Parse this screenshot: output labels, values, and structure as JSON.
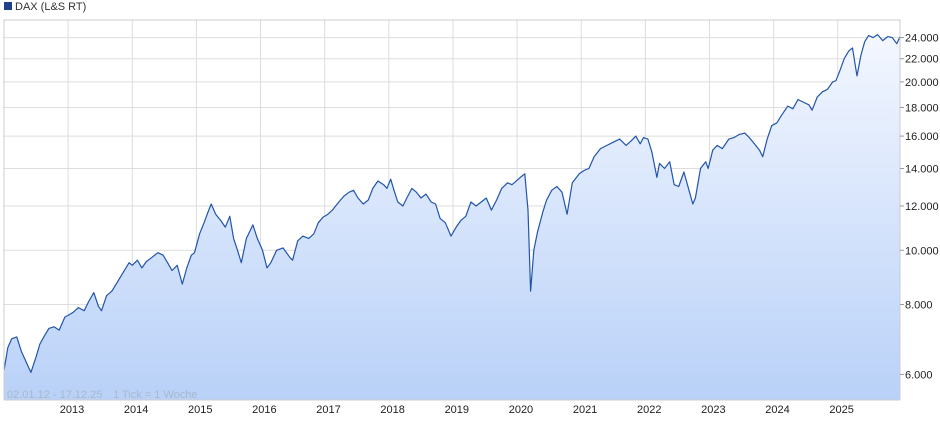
{
  "chart_data": {
    "type": "area",
    "legend": {
      "label": "DAX (L&S RT)",
      "placement": "top-left"
    },
    "footer": {
      "range": "02.01.12 - 17.12.25",
      "tick_note": "1 Tick = 1 Woche"
    },
    "watermark": "",
    "x_ticks": [
      "2013",
      "2014",
      "2015",
      "2016",
      "2017",
      "2018",
      "2019",
      "2020",
      "2021",
      "2022",
      "2023",
      "2024",
      "2025"
    ],
    "y_ticks": [
      {
        "value": 6000,
        "label": "6.000"
      },
      {
        "value": 8000,
        "label": "8.000"
      },
      {
        "value": 10000,
        "label": "10.000"
      },
      {
        "value": 12000,
        "label": "12.000"
      },
      {
        "value": 14000,
        "label": "14.000"
      },
      {
        "value": 16000,
        "label": "16.000"
      },
      {
        "value": 18000,
        "label": "18.000"
      },
      {
        "value": 20000,
        "label": "20.000"
      },
      {
        "value": 22000,
        "label": "22.000"
      },
      {
        "value": 24000,
        "label": "24.000"
      }
    ],
    "y_scale": "log",
    "ylim": [
      5400,
      25800
    ],
    "xlim": [
      2012.0,
      2025.97
    ],
    "grid": true,
    "colors": {
      "line": "#2255aa",
      "fill_top": "#f3f7ff",
      "fill_bottom": "#b9d1f8",
      "grid": "#dddddd",
      "legend_box": "#1f3f8f"
    },
    "series": [
      {
        "name": "DAX (L&S RT)",
        "points": [
          [
            2012.0,
            6100
          ],
          [
            2012.06,
            6700
          ],
          [
            2012.12,
            6950
          ],
          [
            2012.2,
            7000
          ],
          [
            2012.27,
            6600
          ],
          [
            2012.35,
            6300
          ],
          [
            2012.42,
            6050
          ],
          [
            2012.5,
            6450
          ],
          [
            2012.56,
            6800
          ],
          [
            2012.62,
            7000
          ],
          [
            2012.7,
            7250
          ],
          [
            2012.78,
            7300
          ],
          [
            2012.86,
            7200
          ],
          [
            2012.95,
            7600
          ],
          [
            2013.0,
            7650
          ],
          [
            2013.08,
            7750
          ],
          [
            2013.16,
            7900
          ],
          [
            2013.25,
            7800
          ],
          [
            2013.32,
            8100
          ],
          [
            2013.4,
            8400
          ],
          [
            2013.47,
            7950
          ],
          [
            2013.52,
            7800
          ],
          [
            2013.6,
            8300
          ],
          [
            2013.68,
            8450
          ],
          [
            2013.75,
            8700
          ],
          [
            2013.85,
            9100
          ],
          [
            2013.95,
            9500
          ],
          [
            2014.0,
            9400
          ],
          [
            2014.08,
            9600
          ],
          [
            2014.15,
            9300
          ],
          [
            2014.22,
            9550
          ],
          [
            2014.3,
            9700
          ],
          [
            2014.4,
            9900
          ],
          [
            2014.48,
            9800
          ],
          [
            2014.55,
            9500
          ],
          [
            2014.62,
            9200
          ],
          [
            2014.7,
            9400
          ],
          [
            2014.78,
            8700
          ],
          [
            2014.85,
            9300
          ],
          [
            2014.92,
            9800
          ],
          [
            2014.97,
            9900
          ],
          [
            2015.05,
            10700
          ],
          [
            2015.12,
            11200
          ],
          [
            2015.18,
            11700
          ],
          [
            2015.23,
            12100
          ],
          [
            2015.3,
            11600
          ],
          [
            2015.38,
            11300
          ],
          [
            2015.45,
            11000
          ],
          [
            2015.52,
            11500
          ],
          [
            2015.58,
            10500
          ],
          [
            2015.64,
            10000
          ],
          [
            2015.7,
            9500
          ],
          [
            2015.78,
            10500
          ],
          [
            2015.88,
            11100
          ],
          [
            2015.95,
            10500
          ],
          [
            2016.03,
            10000
          ],
          [
            2016.1,
            9300
          ],
          [
            2016.16,
            9500
          ],
          [
            2016.25,
            10000
          ],
          [
            2016.35,
            10100
          ],
          [
            2016.46,
            9700
          ],
          [
            2016.5,
            9600
          ],
          [
            2016.58,
            10400
          ],
          [
            2016.66,
            10600
          ],
          [
            2016.75,
            10500
          ],
          [
            2016.83,
            10700
          ],
          [
            2016.9,
            11200
          ],
          [
            2016.97,
            11450
          ],
          [
            2017.05,
            11600
          ],
          [
            2017.12,
            11800
          ],
          [
            2017.22,
            12200
          ],
          [
            2017.3,
            12500
          ],
          [
            2017.38,
            12700
          ],
          [
            2017.45,
            12800
          ],
          [
            2017.52,
            12400
          ],
          [
            2017.6,
            12100
          ],
          [
            2017.68,
            12300
          ],
          [
            2017.75,
            12900
          ],
          [
            2017.83,
            13300
          ],
          [
            2017.92,
            13100
          ],
          [
            2017.97,
            12900
          ],
          [
            2018.03,
            13400
          ],
          [
            2018.08,
            12800
          ],
          [
            2018.14,
            12200
          ],
          [
            2018.22,
            12000
          ],
          [
            2018.28,
            12400
          ],
          [
            2018.36,
            12900
          ],
          [
            2018.43,
            12700
          ],
          [
            2018.5,
            12400
          ],
          [
            2018.58,
            12600
          ],
          [
            2018.66,
            12200
          ],
          [
            2018.73,
            12100
          ],
          [
            2018.8,
            11400
          ],
          [
            2018.88,
            11200
          ],
          [
            2018.97,
            10600
          ],
          [
            2019.05,
            11000
          ],
          [
            2019.12,
            11300
          ],
          [
            2019.2,
            11500
          ],
          [
            2019.28,
            12200
          ],
          [
            2019.36,
            12000
          ],
          [
            2019.44,
            12200
          ],
          [
            2019.52,
            12400
          ],
          [
            2019.6,
            11800
          ],
          [
            2019.68,
            12300
          ],
          [
            2019.76,
            12900
          ],
          [
            2019.85,
            13200
          ],
          [
            2019.92,
            13100
          ],
          [
            2019.97,
            13250
          ],
          [
            2020.05,
            13500
          ],
          [
            2020.12,
            13700
          ],
          [
            2020.17,
            11800
          ],
          [
            2020.21,
            8450
          ],
          [
            2020.26,
            10000
          ],
          [
            2020.32,
            10800
          ],
          [
            2020.4,
            11700
          ],
          [
            2020.46,
            12300
          ],
          [
            2020.54,
            12800
          ],
          [
            2020.62,
            13000
          ],
          [
            2020.7,
            12700
          ],
          [
            2020.78,
            11600
          ],
          [
            2020.86,
            13200
          ],
          [
            2020.97,
            13700
          ],
          [
            2021.05,
            13900
          ],
          [
            2021.12,
            14000
          ],
          [
            2021.2,
            14700
          ],
          [
            2021.3,
            15200
          ],
          [
            2021.4,
            15400
          ],
          [
            2021.5,
            15600
          ],
          [
            2021.6,
            15800
          ],
          [
            2021.7,
            15400
          ],
          [
            2021.78,
            15700
          ],
          [
            2021.85,
            16000
          ],
          [
            2021.92,
            15500
          ],
          [
            2021.97,
            15900
          ],
          [
            2022.04,
            15800
          ],
          [
            2022.1,
            15000
          ],
          [
            2022.18,
            13500
          ],
          [
            2022.22,
            14300
          ],
          [
            2022.3,
            14000
          ],
          [
            2022.38,
            14400
          ],
          [
            2022.45,
            13100
          ],
          [
            2022.52,
            13000
          ],
          [
            2022.6,
            13800
          ],
          [
            2022.68,
            12800
          ],
          [
            2022.74,
            12100
          ],
          [
            2022.78,
            12400
          ],
          [
            2022.86,
            14000
          ],
          [
            2022.94,
            14400
          ],
          [
            2022.98,
            14000
          ],
          [
            2023.05,
            15100
          ],
          [
            2023.12,
            15400
          ],
          [
            2023.2,
            15200
          ],
          [
            2023.3,
            15800
          ],
          [
            2023.38,
            15900
          ],
          [
            2023.46,
            16100
          ],
          [
            2023.55,
            16200
          ],
          [
            2023.62,
            15900
          ],
          [
            2023.7,
            15500
          ],
          [
            2023.78,
            15100
          ],
          [
            2023.83,
            14700
          ],
          [
            2023.9,
            15800
          ],
          [
            2023.97,
            16700
          ],
          [
            2024.05,
            16900
          ],
          [
            2024.12,
            17400
          ],
          [
            2024.22,
            18100
          ],
          [
            2024.3,
            17900
          ],
          [
            2024.38,
            18600
          ],
          [
            2024.46,
            18400
          ],
          [
            2024.55,
            18200
          ],
          [
            2024.6,
            17800
          ],
          [
            2024.68,
            18800
          ],
          [
            2024.76,
            19200
          ],
          [
            2024.84,
            19400
          ],
          [
            2024.92,
            20000
          ],
          [
            2024.97,
            20100
          ],
          [
            2025.03,
            20900
          ],
          [
            2025.1,
            22000
          ],
          [
            2025.17,
            22700
          ],
          [
            2025.23,
            23000
          ],
          [
            2025.27,
            21500
          ],
          [
            2025.3,
            20500
          ],
          [
            2025.36,
            22300
          ],
          [
            2025.42,
            23600
          ],
          [
            2025.48,
            24200
          ],
          [
            2025.55,
            24000
          ],
          [
            2025.62,
            24300
          ],
          [
            2025.7,
            23700
          ],
          [
            2025.78,
            24100
          ],
          [
            2025.85,
            24000
          ],
          [
            2025.92,
            23400
          ],
          [
            2025.97,
            24100
          ]
        ]
      }
    ]
  }
}
